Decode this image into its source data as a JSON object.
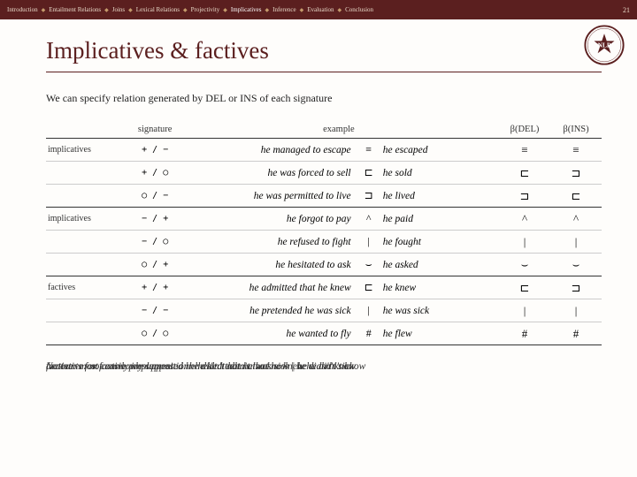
{
  "nav": {
    "items": [
      "Introduction",
      "Entailment Relations",
      "Joins",
      "Lexical Relations",
      "Projectivity",
      "Implicatives",
      "Inference",
      "Evaluation",
      "Conclusion"
    ],
    "highlight_index": 5,
    "page_number": "21"
  },
  "title": "Implicatives & factives",
  "intro": "We can specify relation generated by DEL or INS of each signature",
  "table": {
    "headers": {
      "cat": "",
      "sig": "signature",
      "example": "example",
      "bdel": "β(DEL)",
      "bins": "β(INS)"
    },
    "rows": [
      {
        "cat": "implicatives",
        "sig": "+ / −",
        "ex1": "he managed to escape",
        "rel": "≡",
        "ex2": "he escaped",
        "bdel": "≡",
        "bins": "≡",
        "group_end": false
      },
      {
        "cat": "",
        "sig": "+ / ○",
        "ex1": "he was forced to sell",
        "rel": "⊏",
        "ex2": "he sold",
        "bdel": "⊏",
        "bins": "⊐",
        "group_end": false
      },
      {
        "cat": "",
        "sig": "○ / −",
        "ex1": "he was permitted to live",
        "rel": "⊐",
        "ex2": "he lived",
        "bdel": "⊐",
        "bins": "⊏",
        "group_end": true
      },
      {
        "cat": "implicatives",
        "sig": "− / +",
        "ex1": "he forgot to pay",
        "rel": "^",
        "ex2": "he paid",
        "bdel": "^",
        "bins": "^",
        "group_end": false
      },
      {
        "cat": "",
        "sig": "− / ○",
        "ex1": "he refused to fight",
        "rel": "|",
        "ex2": "he fought",
        "bdel": "|",
        "bins": "|",
        "group_end": false
      },
      {
        "cat": "",
        "sig": "○ / +",
        "ex1": "he hesitated to ask",
        "rel": "⌣",
        "ex2": "he asked",
        "bdel": "⌣",
        "bins": "⌣",
        "group_end": true
      },
      {
        "cat": "factives",
        "sig": "+ / +",
        "ex1": "he admitted that he knew",
        "rel": "⊏",
        "ex2": "he knew",
        "bdel": "⊏",
        "bins": "⊐",
        "group_end": false
      },
      {
        "cat": "",
        "sig": "− / −",
        "ex1": "he pretended he was sick",
        "rel": "|",
        "ex2": "he was sick",
        "bdel": "|",
        "bins": "|",
        "group_end": false
      },
      {
        "cat": "",
        "sig": "○ / ○",
        "ex1": "he wanted to fly",
        "rel": "#",
        "ex2": "he flew",
        "bdel": "#",
        "bins": "#",
        "group_end": true
      }
    ]
  },
  "footer_overlays": [
    "Nottative: not easily implemented: he didn't admit that he knew   he didn't know",
    "accounts for factive presupposition: he lied that he was sick | he wasn't sick",
    "factive: most commonly supposed he hesitated to also know | he didn't know"
  ],
  "colors": {
    "brand": "#5b1f1f",
    "nav_text": "#e8d9c8",
    "accent": "#c49a6c",
    "background": "#fefdfb"
  }
}
